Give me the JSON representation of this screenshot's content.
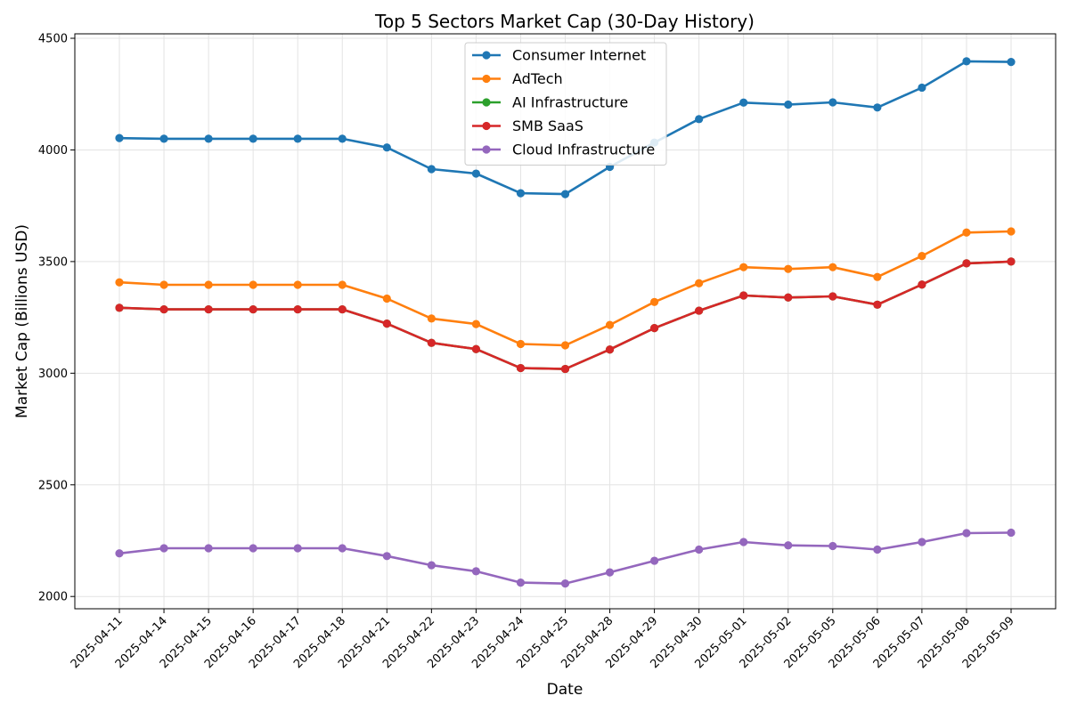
{
  "chart_data": {
    "type": "line",
    "title": "Top 5 Sectors Market Cap (30-Day History)",
    "xlabel": "Date",
    "ylabel": "Market Cap (Billions USD)",
    "ylim": [
      1945,
      4520
    ],
    "yticks": [
      2000,
      2500,
      3000,
      3500,
      4000,
      4500
    ],
    "grid": true,
    "legend_position": "top-center",
    "categories": [
      "2025-04-11",
      "2025-04-14",
      "2025-04-15",
      "2025-04-16",
      "2025-04-17",
      "2025-04-18",
      "2025-04-21",
      "2025-04-22",
      "2025-04-23",
      "2025-04-24",
      "2025-04-25",
      "2025-04-28",
      "2025-04-29",
      "2025-04-30",
      "2025-05-01",
      "2025-05-02",
      "2025-05-05",
      "2025-05-06",
      "2025-05-07",
      "2025-05-08",
      "2025-05-09"
    ],
    "series": [
      {
        "name": "Consumer Internet",
        "color": "#1f77b4",
        "values": [
          4053,
          4050,
          4050,
          4050,
          4050,
          4050,
          4011,
          3914,
          3894,
          3806,
          3802,
          3924,
          4033,
          4138,
          4212,
          4203,
          4213,
          4190,
          4279,
          4397,
          4394
        ]
      },
      {
        "name": "AdTech",
        "color": "#ff7f0e",
        "values": [
          3407,
          3396,
          3396,
          3396,
          3396,
          3396,
          3334,
          3245,
          3220,
          3131,
          3125,
          3216,
          3319,
          3403,
          3475,
          3467,
          3475,
          3431,
          3525,
          3630,
          3635
        ]
      },
      {
        "name": "AI Infrastructure",
        "color": "#2ca02c",
        "values": [
          3293,
          3286,
          3286,
          3286,
          3286,
          3286,
          3222,
          3136,
          3108,
          3023,
          3019,
          3106,
          3202,
          3280,
          3348,
          3339,
          3344,
          3307,
          3397,
          3492,
          3500
        ]
      },
      {
        "name": "SMB SaaS",
        "color": "#d62728",
        "values": [
          3293,
          3286,
          3286,
          3286,
          3286,
          3286,
          3222,
          3136,
          3108,
          3023,
          3019,
          3106,
          3202,
          3280,
          3348,
          3339,
          3344,
          3307,
          3397,
          3492,
          3500
        ]
      },
      {
        "name": "Cloud Infrastructure",
        "color": "#9467bd",
        "values": [
          2193,
          2216,
          2216,
          2216,
          2216,
          2216,
          2181,
          2140,
          2113,
          2062,
          2058,
          2108,
          2160,
          2210,
          2244,
          2229,
          2226,
          2210,
          2244,
          2284,
          2286
        ]
      }
    ]
  }
}
